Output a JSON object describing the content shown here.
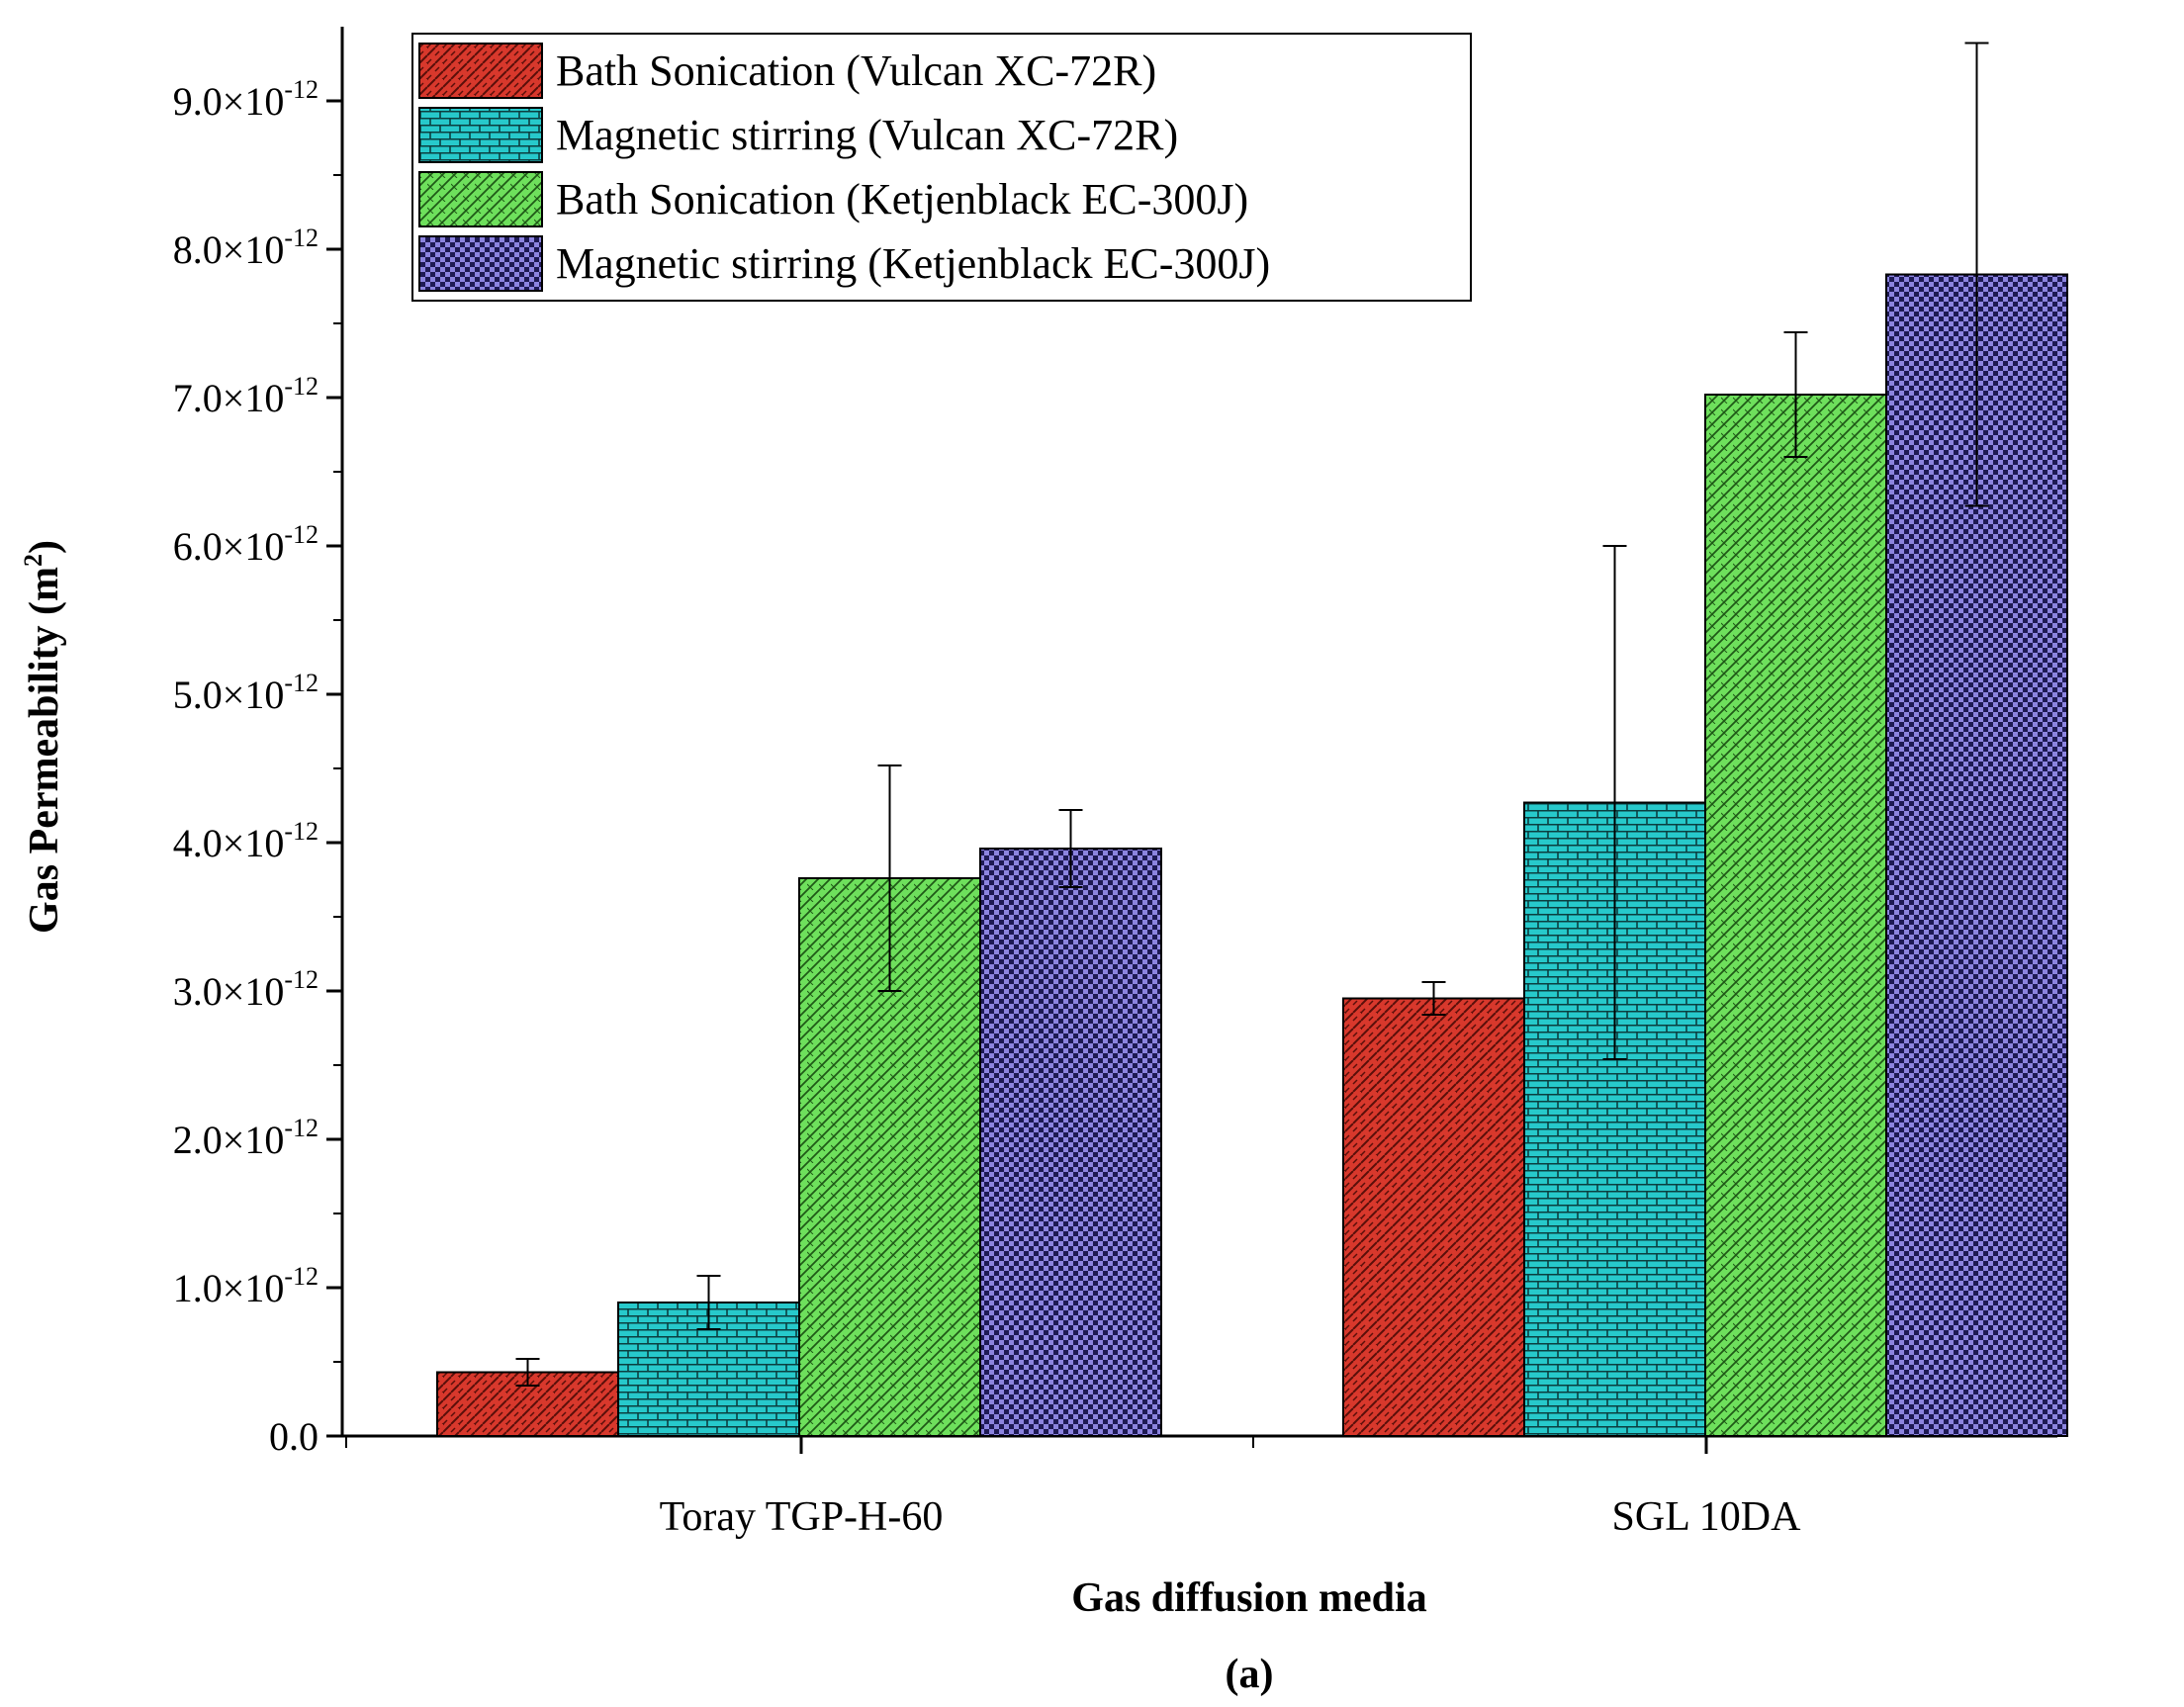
{
  "chart_data": {
    "type": "bar",
    "title": "",
    "panel_label": "(a)",
    "xlabel": "Gas diffusion media",
    "ylabel": "Gas Permeability (m",
    "ylabel_sup": "2",
    "ylabel_close": ")",
    "ylim": [
      0,
      9.5e-12
    ],
    "yticks": [
      {
        "value": 0,
        "label": "0.0",
        "exp": ""
      },
      {
        "value": 1e-12,
        "label": "1.0×10",
        "exp": "-12"
      },
      {
        "value": 2e-12,
        "label": "2.0×10",
        "exp": "-12"
      },
      {
        "value": 3e-12,
        "label": "3.0×10",
        "exp": "-12"
      },
      {
        "value": 4e-12,
        "label": "4.0×10",
        "exp": "-12"
      },
      {
        "value": 5e-12,
        "label": "5.0×10",
        "exp": "-12"
      },
      {
        "value": 6e-12,
        "label": "6.0×10",
        "exp": "-12"
      },
      {
        "value": 7e-12,
        "label": "7.0×10",
        "exp": "-12"
      },
      {
        "value": 8e-12,
        "label": "8.0×10",
        "exp": "-12"
      },
      {
        "value": 9e-12,
        "label": "9.0×10",
        "exp": "-12"
      }
    ],
    "categories": [
      "Toray TGP-H-60",
      "SGL 10DA"
    ],
    "legend_position": "top-left",
    "series": [
      {
        "name": "Bath Sonication (Vulcan XC-72R)",
        "color": "#d8382c",
        "pattern": "zigzag",
        "values": [
          4.3e-13,
          2.95e-12
        ],
        "errors": [
          9e-14,
          1.1e-13
        ]
      },
      {
        "name": "Magnetic stirring (Vulcan XC-72R)",
        "color": "#27c9cb",
        "pattern": "bricks",
        "values": [
          9e-13,
          4.27e-12
        ],
        "errors": [
          1.8e-13,
          1.73e-12
        ]
      },
      {
        "name": "Bath Sonication (Ketjenblack EC-300J)",
        "color": "#6ee05c",
        "pattern": "diagonal",
        "values": [
          3.76e-12,
          7.02e-12
        ],
        "errors": [
          7.6e-13,
          4.2e-13
        ]
      },
      {
        "name": "Magnetic stirring (Ketjenblack EC-300J)",
        "color": "#8c84e0",
        "pattern": "checker",
        "values": [
          3.96e-12,
          7.83e-12
        ],
        "errors": [
          2.6e-13,
          1.56e-12
        ]
      }
    ]
  }
}
